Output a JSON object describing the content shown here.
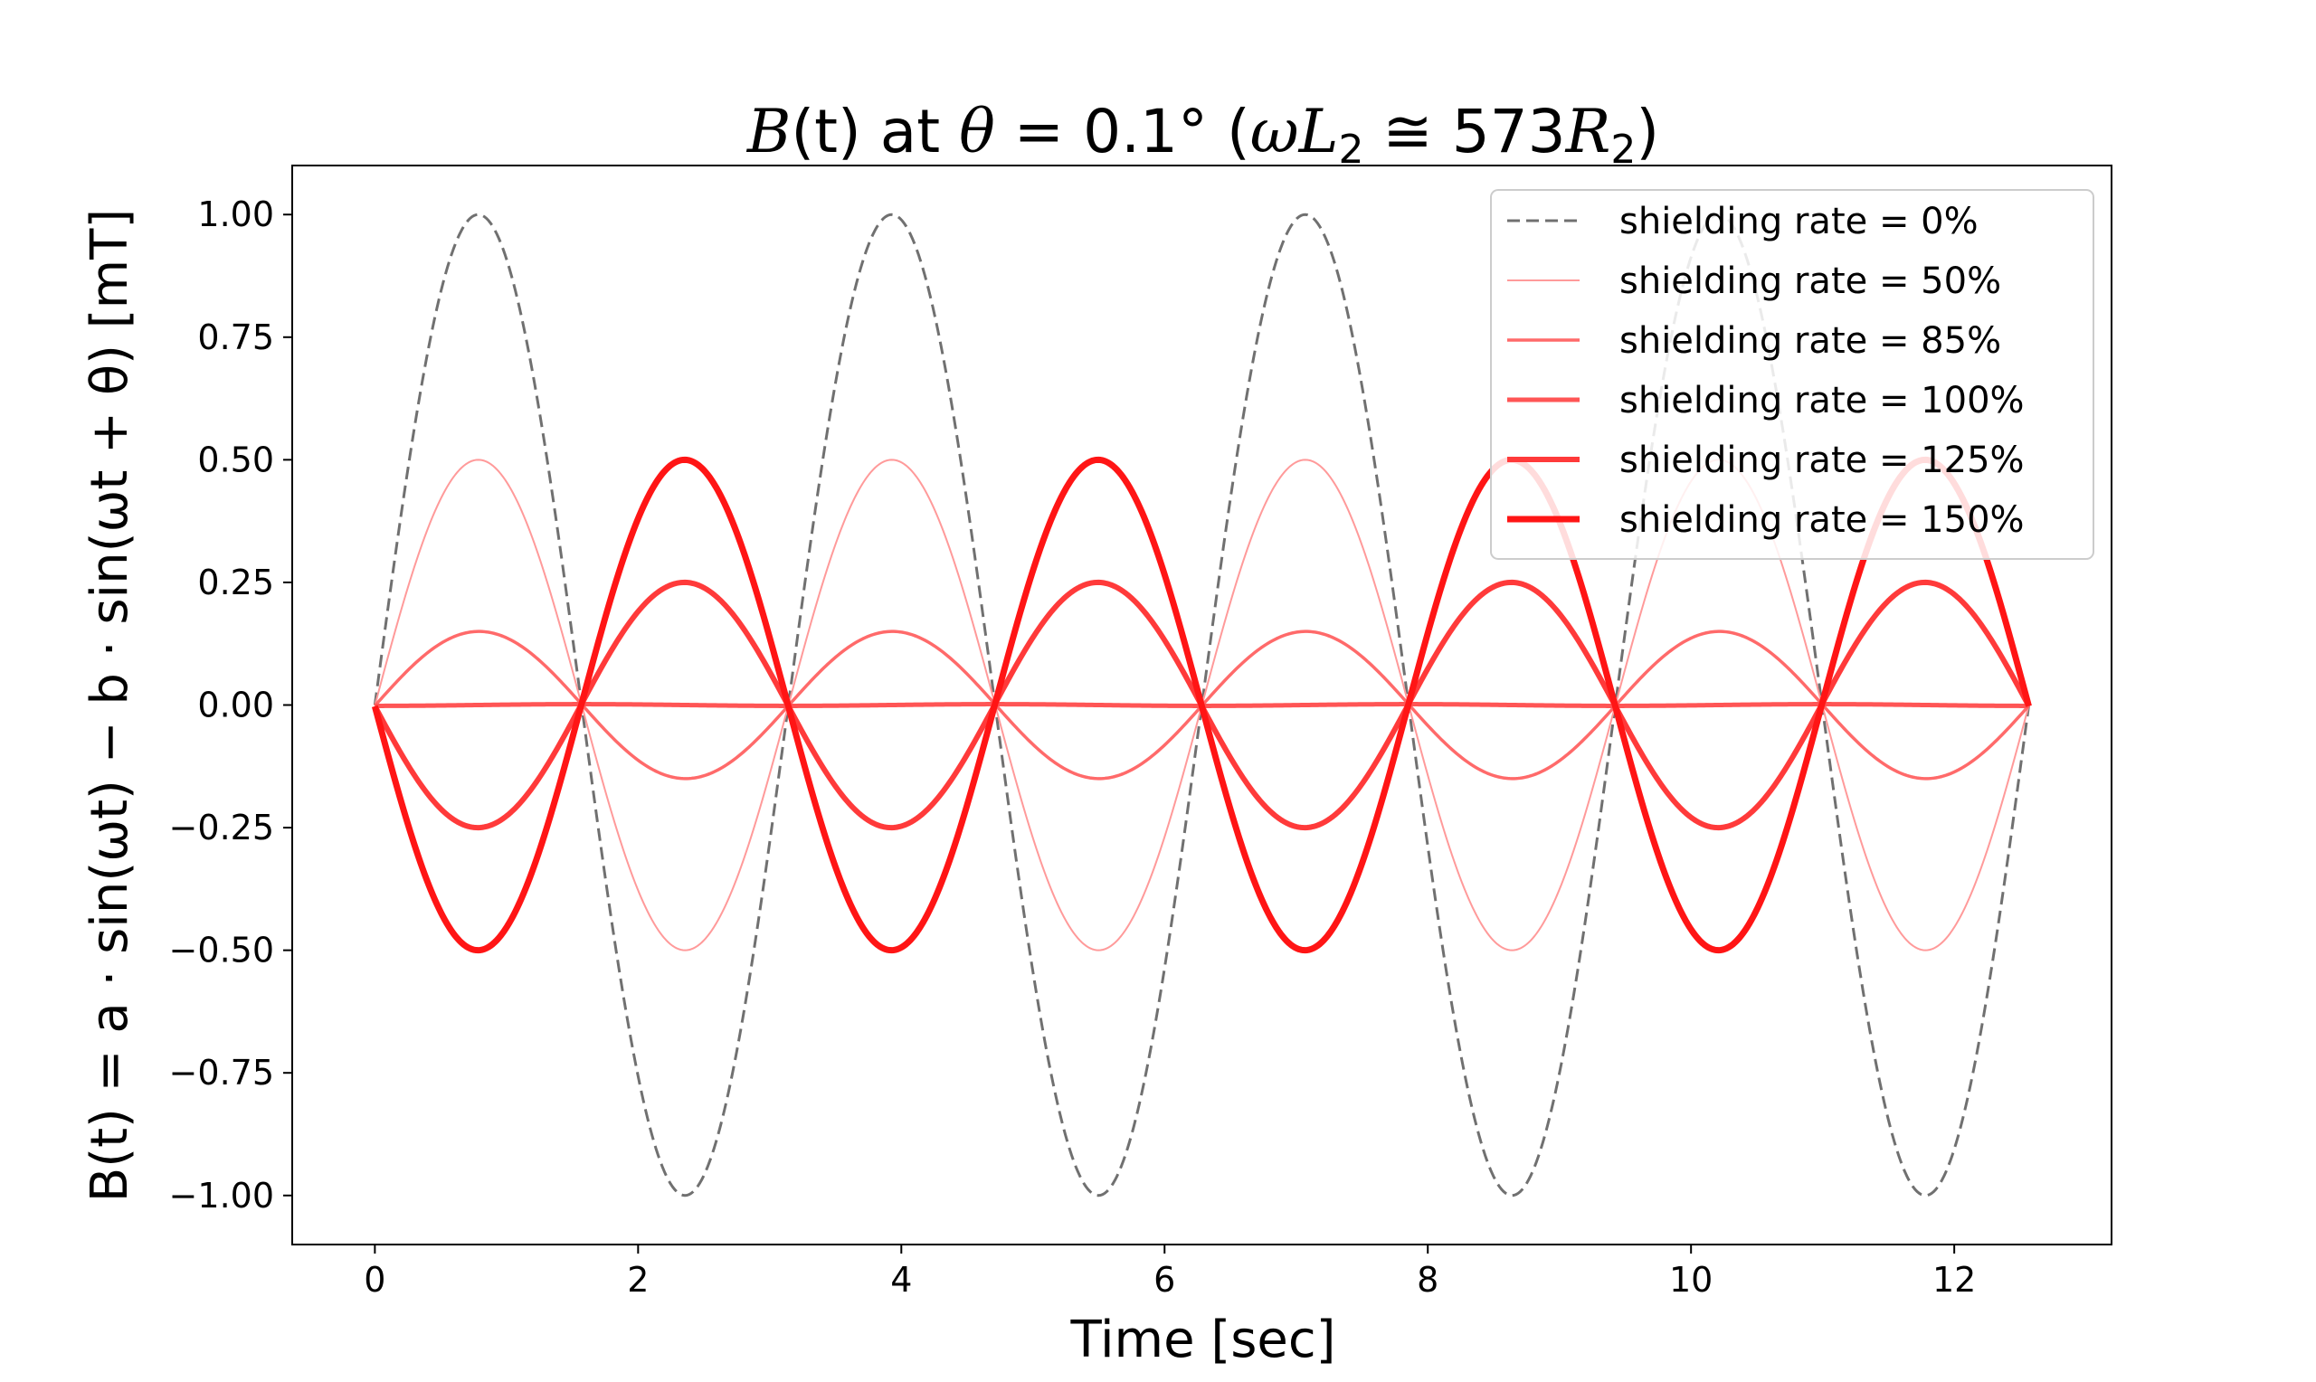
{
  "chart_data": {
    "type": "line",
    "title": "B(t) at θ = 0.1° (ωL₂ ≅ 573R₂)",
    "title_parts": {
      "b": "B",
      "paren_t": "(t)",
      "at": " at ",
      "theta": "θ",
      "equals_value": " = 0.1",
      "degree": "°",
      "gap": "  (",
      "omega_l": "ωL",
      "sub2a": "2",
      "approx": " ≅ 573",
      "r": "R",
      "sub2b": "2",
      "close": ")"
    },
    "xlabel": "Time [sec]",
    "ylabel": "B(t) = a · sin(ωt) − b · sin(ωt + θ) [mT]",
    "xlim": [
      -0.628,
      13.195
    ],
    "ylim": [
      -1.1,
      1.1
    ],
    "x_ticks": [
      0,
      2,
      4,
      6,
      8,
      10,
      12
    ],
    "x_tick_labels": [
      "0",
      "2",
      "4",
      "6",
      "8",
      "10",
      "12"
    ],
    "y_ticks": [
      1.0,
      0.75,
      0.5,
      0.25,
      0.0,
      -0.25,
      -0.5,
      -0.75,
      -1.0
    ],
    "y_tick_labels": [
      "1.00",
      "0.75",
      "0.50",
      "0.25",
      "0.00",
      "−0.25",
      "−0.50",
      "−0.75",
      "−1.00"
    ],
    "x_range": [
      0,
      12.566
    ],
    "function": "B(t) = sin(2t) − (rate/100) · sin(2t + 0.1°)",
    "series": [
      {
        "name": "shielding rate = 0%",
        "rate": 0,
        "color": "#707070",
        "dashed": true
      },
      {
        "name": "shielding rate = 50%",
        "rate": 50,
        "color": "#ff9a9a",
        "dashed": false
      },
      {
        "name": "shielding rate = 85%",
        "rate": 85,
        "color": "#ff6a6a",
        "dashed": false
      },
      {
        "name": "shielding rate = 100%",
        "rate": 100,
        "color": "#ff5555",
        "dashed": false
      },
      {
        "name": "shielding rate = 125%",
        "rate": 125,
        "color": "#ff3a3a",
        "dashed": false
      },
      {
        "name": "shielding rate = 150%",
        "rate": 150,
        "color": "#ff1515",
        "dashed": false
      }
    ],
    "grid": false,
    "legend_position": "top-right"
  }
}
